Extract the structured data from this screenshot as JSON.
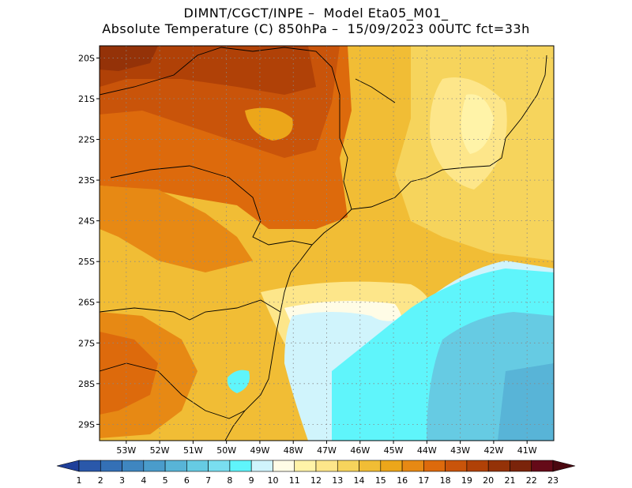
{
  "title": {
    "line1": "DIMNT/CGCT/INPE –  Model Eta05_M01_",
    "line2": "Absolute Temperature (C) 850hPa –  15/09/2023 00UTC fct=33h"
  },
  "map": {
    "lat_labels": [
      "20S",
      "21S",
      "22S",
      "23S",
      "24S",
      "25S",
      "26S",
      "27S",
      "28S",
      "29S"
    ],
    "lon_labels": [
      "53W",
      "52W",
      "51W",
      "50W",
      "49W",
      "48W",
      "47W",
      "46W",
      "45W",
      "44W",
      "43W",
      "42W",
      "41W"
    ],
    "lat_range": [
      -29.4,
      -19.7
    ],
    "lon_range": [
      -53.8,
      -40.2
    ],
    "gridlines": "dotted"
  },
  "colorbar": {
    "labels": [
      "1",
      "2",
      "3",
      "4",
      "5",
      "6",
      "7",
      "8",
      "9",
      "10",
      "11",
      "12",
      "13",
      "14",
      "15",
      "16",
      "17",
      "18",
      "19",
      "20",
      "21",
      "22",
      "23"
    ],
    "colors": [
      "#1f3f9a",
      "#2a58aa",
      "#3470b6",
      "#3f86c0",
      "#4a9ccb",
      "#58b4d7",
      "#66cbe3",
      "#79def0",
      "#5ff5fb",
      "#d0f4fc",
      "#fffce6",
      "#fff3a8",
      "#fde68a",
      "#f6d45c",
      "#f1bd35",
      "#eca61a",
      "#e78914",
      "#dd6a0c",
      "#c9540a",
      "#b04107",
      "#943208",
      "#7a240a",
      "#650a18",
      "#4a0810"
    ]
  }
}
